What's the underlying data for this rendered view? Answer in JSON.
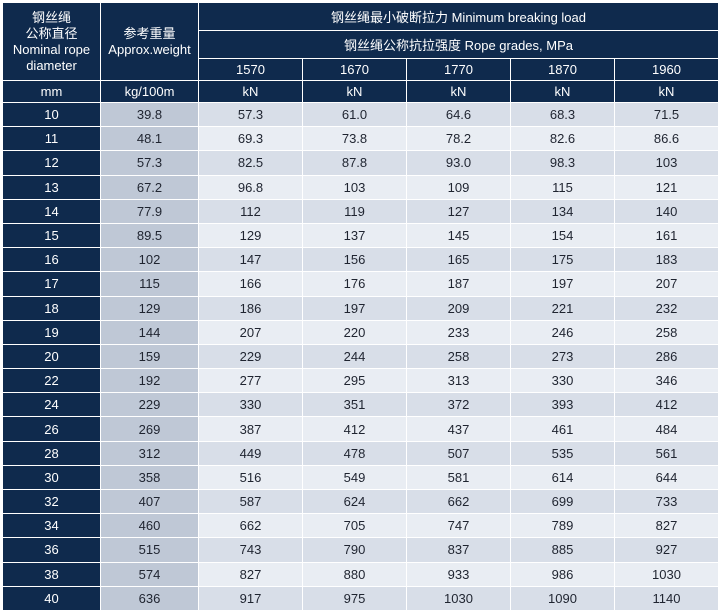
{
  "header": {
    "diameter": [
      "钢丝绳",
      "公称直径",
      "Nominal rope",
      "diameter"
    ],
    "weight": [
      "参考重量",
      "Approx.weight"
    ],
    "mbl": "钢丝绳最小破断拉力  Minimum breaking load",
    "grades": "钢丝绳公称抗拉强度  Rope grades, MPa",
    "grade_values": [
      "1570",
      "1670",
      "1770",
      "1870",
      "1960"
    ]
  },
  "units": {
    "diameter": "mm",
    "weight": "kg/100m",
    "load": [
      "kN",
      "kN",
      "kN",
      "kN",
      "kN"
    ]
  },
  "rows": [
    {
      "d": "10",
      "w": "39.8",
      "v": [
        "57.3",
        "61.0",
        "64.6",
        "68.3",
        "71.5"
      ]
    },
    {
      "d": "11",
      "w": "48.1",
      "v": [
        "69.3",
        "73.8",
        "78.2",
        "82.6",
        "86.6"
      ]
    },
    {
      "d": "12",
      "w": "57.3",
      "v": [
        "82.5",
        "87.8",
        "93.0",
        "98.3",
        "103"
      ]
    },
    {
      "d": "13",
      "w": "67.2",
      "v": [
        "96.8",
        "103",
        "109",
        "115",
        "121"
      ]
    },
    {
      "d": "14",
      "w": "77.9",
      "v": [
        "112",
        "119",
        "127",
        "134",
        "140"
      ]
    },
    {
      "d": "15",
      "w": "89.5",
      "v": [
        "129",
        "137",
        "145",
        "154",
        "161"
      ]
    },
    {
      "d": "16",
      "w": "102",
      "v": [
        "147",
        "156",
        "165",
        "175",
        "183"
      ]
    },
    {
      "d": "17",
      "w": "115",
      "v": [
        "166",
        "176",
        "187",
        "197",
        "207"
      ]
    },
    {
      "d": "18",
      "w": "129",
      "v": [
        "186",
        "197",
        "209",
        "221",
        "232"
      ]
    },
    {
      "d": "19",
      "w": "144",
      "v": [
        "207",
        "220",
        "233",
        "246",
        "258"
      ]
    },
    {
      "d": "20",
      "w": "159",
      "v": [
        "229",
        "244",
        "258",
        "273",
        "286"
      ]
    },
    {
      "d": "22",
      "w": "192",
      "v": [
        "277",
        "295",
        "313",
        "330",
        "346"
      ]
    },
    {
      "d": "24",
      "w": "229",
      "v": [
        "330",
        "351",
        "372",
        "393",
        "412"
      ]
    },
    {
      "d": "26",
      "w": "269",
      "v": [
        "387",
        "412",
        "437",
        "461",
        "484"
      ]
    },
    {
      "d": "28",
      "w": "312",
      "v": [
        "449",
        "478",
        "507",
        "535",
        "561"
      ]
    },
    {
      "d": "30",
      "w": "358",
      "v": [
        "516",
        "549",
        "581",
        "614",
        "644"
      ]
    },
    {
      "d": "32",
      "w": "407",
      "v": [
        "587",
        "624",
        "662",
        "699",
        "733"
      ]
    },
    {
      "d": "34",
      "w": "460",
      "v": [
        "662",
        "705",
        "747",
        "789",
        "827"
      ]
    },
    {
      "d": "36",
      "w": "515",
      "v": [
        "743",
        "790",
        "837",
        "885",
        "927"
      ]
    },
    {
      "d": "38",
      "w": "574",
      "v": [
        "827",
        "880",
        "933",
        "986",
        "1030"
      ]
    },
    {
      "d": "40",
      "w": "636",
      "v": [
        "917",
        "975",
        "1030",
        "1090",
        "1140"
      ]
    }
  ]
}
